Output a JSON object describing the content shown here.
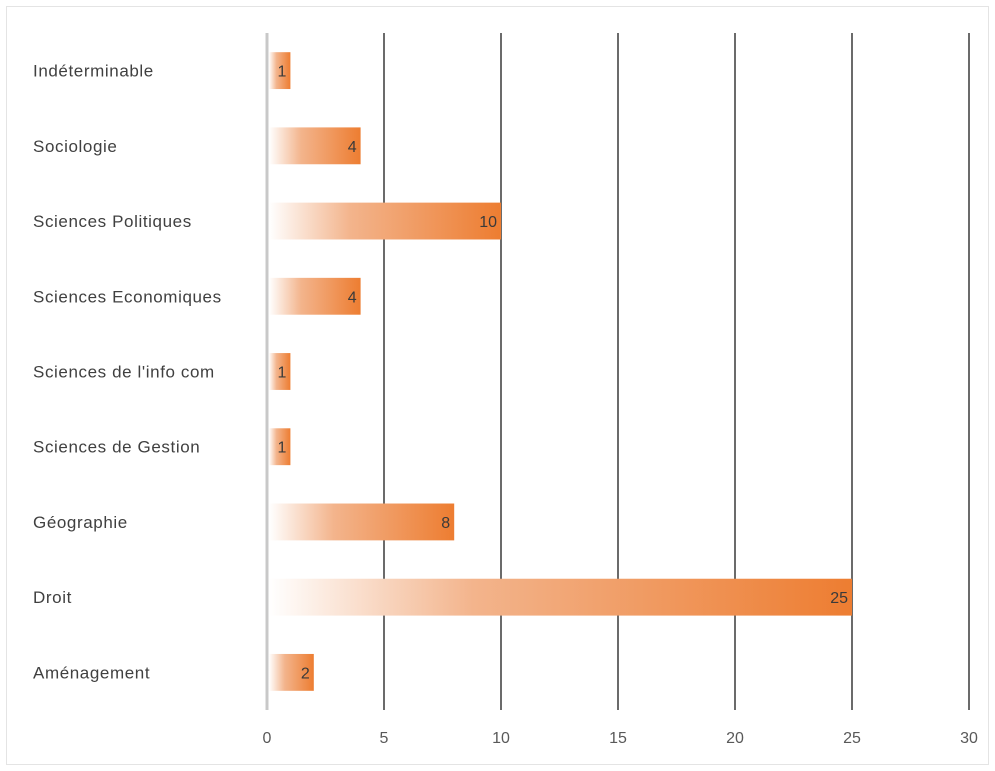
{
  "chart_data": {
    "type": "bar",
    "orientation": "horizontal",
    "title": "",
    "xlabel": "",
    "ylabel": "",
    "categories": [
      "Indéterminable",
      "Sociologie",
      "Sciences Politiques",
      "Sciences Economiques",
      "Sciences de l'info com",
      "Sciences de Gestion",
      "Géographie",
      "Droit",
      "Aménagement"
    ],
    "values": [
      1,
      4,
      10,
      4,
      1,
      1,
      8,
      25,
      2
    ],
    "xlim": [
      0,
      30
    ],
    "xticks": [
      "0",
      "5",
      "10",
      "15",
      "20",
      "25",
      "30"
    ],
    "grid": "vertical",
    "data_labels": true,
    "bar_color": "#ED7D31",
    "bar_fill": "gradient-left-to-right"
  }
}
